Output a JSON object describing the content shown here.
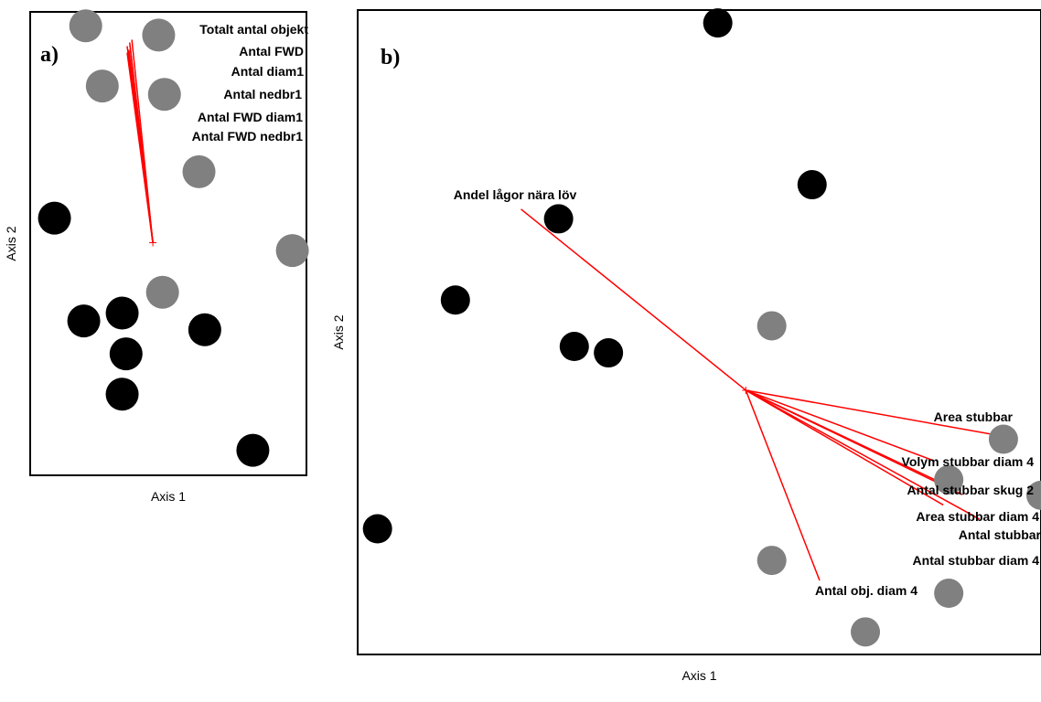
{
  "chart_data": [
    {
      "type": "scatter",
      "panel_label": "a)",
      "xlabel": "Axis 1",
      "ylabel": "Axis 2",
      "xlim": [
        0,
        100
      ],
      "ylim": [
        0,
        100
      ],
      "grid": false,
      "colors": {
        "group_1": "#000000",
        "group_2": "#808080",
        "vector": "#ff0000"
      },
      "points": [
        {
          "x": 20.1,
          "y": 97.0,
          "group": "group_2"
        },
        {
          "x": 46.5,
          "y": 95.0,
          "group": "group_2"
        },
        {
          "x": 26.1,
          "y": 84.0,
          "group": "group_2"
        },
        {
          "x": 48.6,
          "y": 82.2,
          "group": "group_2"
        },
        {
          "x": 61.1,
          "y": 65.5,
          "group": "group_2"
        },
        {
          "x": 8.8,
          "y": 55.5,
          "group": "group_1"
        },
        {
          "x": 94.9,
          "y": 48.5,
          "group": "group_2"
        },
        {
          "x": 47.9,
          "y": 39.5,
          "group": "group_2"
        },
        {
          "x": 19.4,
          "y": 33.3,
          "group": "group_1"
        },
        {
          "x": 33.3,
          "y": 35.0,
          "group": "group_1"
        },
        {
          "x": 63.2,
          "y": 31.4,
          "group": "group_1"
        },
        {
          "x": 34.7,
          "y": 26.2,
          "group": "group_1"
        },
        {
          "x": 33.3,
          "y": 17.5,
          "group": "group_1"
        },
        {
          "x": 80.6,
          "y": 5.4,
          "group": "group_1"
        }
      ],
      "vector_origin": {
        "x": 44.4,
        "y": 50.2
      },
      "vectors": [
        {
          "label": "Totalt antal objekt",
          "x": 36.8,
          "y": 94.0
        },
        {
          "label": "Antal FWD",
          "x": 36.0,
          "y": 93.4
        },
        {
          "label": "Antal diam1",
          "x": 36.1,
          "y": 92.8
        },
        {
          "label": "Antal nedbr1",
          "x": 35.1,
          "y": 92.6
        },
        {
          "label": "Antal FWD diam1",
          "x": 35.7,
          "y": 91.8
        },
        {
          "label": "Antal FWD nedbr1",
          "x": 35.1,
          "y": 91.2
        }
      ]
    },
    {
      "type": "scatter",
      "panel_label": "b)",
      "xlabel": "Axis 1",
      "ylabel": "Axis 2",
      "xlim": [
        0,
        100
      ],
      "ylim": [
        0,
        100
      ],
      "grid": false,
      "colors": {
        "group_1": "#000000",
        "group_2": "#808080",
        "vector": "#ff0000"
      },
      "points": [
        {
          "x": 52.7,
          "y": 98.0,
          "group": "group_1"
        },
        {
          "x": 66.5,
          "y": 72.9,
          "group": "group_1"
        },
        {
          "x": 29.4,
          "y": 67.6,
          "group": "group_1"
        },
        {
          "x": 14.3,
          "y": 55.0,
          "group": "group_1"
        },
        {
          "x": 60.6,
          "y": 51.0,
          "group": "group_2"
        },
        {
          "x": 31.7,
          "y": 47.8,
          "group": "group_1"
        },
        {
          "x": 36.7,
          "y": 46.8,
          "group": "group_1"
        },
        {
          "x": 94.5,
          "y": 33.4,
          "group": "group_2"
        },
        {
          "x": 86.5,
          "y": 27.1,
          "group": "group_2"
        },
        {
          "x": 100.0,
          "y": 24.7,
          "group": "group_2"
        },
        {
          "x": 2.9,
          "y": 19.5,
          "group": "group_1"
        },
        {
          "x": 60.6,
          "y": 14.6,
          "group": "group_2"
        },
        {
          "x": 86.5,
          "y": 9.5,
          "group": "group_2"
        },
        {
          "x": 74.3,
          "y": 3.5,
          "group": "group_2"
        }
      ],
      "vector_origin": {
        "x": 56.8,
        "y": 41.0
      },
      "vectors": [
        {
          "label": "Andel lågor nära löv",
          "x": 23.9,
          "y": 69.1
        },
        {
          "label": "Area stubbar",
          "x": 94.8,
          "y": 33.8
        },
        {
          "label": "Volym stubbar diam 4",
          "x": 84.0,
          "y": 30.2
        },
        {
          "label": "Antal stubbar skug 2",
          "x": 87.5,
          "y": 25.6
        },
        {
          "label": "Area stubbar diam 4",
          "x": 88.5,
          "y": 24.8
        },
        {
          "label": "Antal stubbar",
          "x": 91.0,
          "y": 21.0
        },
        {
          "label": "Antal stubbar diam 4",
          "x": 85.7,
          "y": 23.2
        },
        {
          "label": "Antal obj. diam 4",
          "x": 67.6,
          "y": 11.5
        }
      ]
    }
  ]
}
